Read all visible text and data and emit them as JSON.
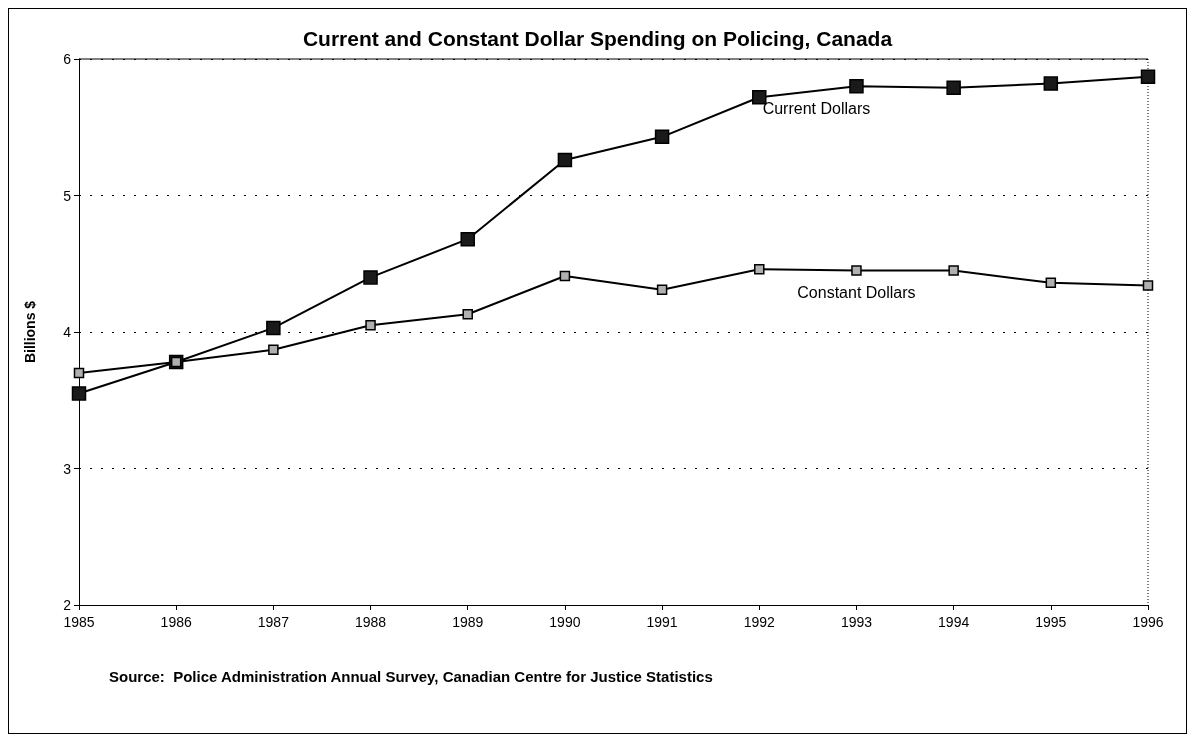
{
  "chart_data": {
    "type": "line",
    "title": "Current and Constant Dollar Spending on Policing, Canada",
    "ylabel": "Billions $",
    "categories": [
      "1985",
      "1986",
      "1987",
      "1988",
      "1989",
      "1990",
      "1991",
      "1992",
      "1993",
      "1994",
      "1995",
      "1996"
    ],
    "series": [
      {
        "name": "Current Dollars",
        "color": "#1a1a1a",
        "values": [
          3.55,
          3.78,
          4.03,
          4.4,
          4.68,
          5.26,
          5.43,
          5.72,
          5.8,
          5.79,
          5.82,
          5.87
        ]
      },
      {
        "name": "Constant Dollars",
        "color": "#b0b0b0",
        "values": [
          3.7,
          3.78,
          3.87,
          4.05,
          4.13,
          4.41,
          4.31,
          4.46,
          4.45,
          4.45,
          4.36,
          4.34
        ]
      }
    ],
    "ylim": [
      2,
      6
    ],
    "yticks": [
      2,
      3,
      4,
      5,
      6
    ],
    "grid": "y",
    "legend": false,
    "marker": "square",
    "line_style": "solid",
    "annotations": [
      "Source:  Police Administration Annual Survey, Canadian Centre for Justice Statistics"
    ]
  }
}
